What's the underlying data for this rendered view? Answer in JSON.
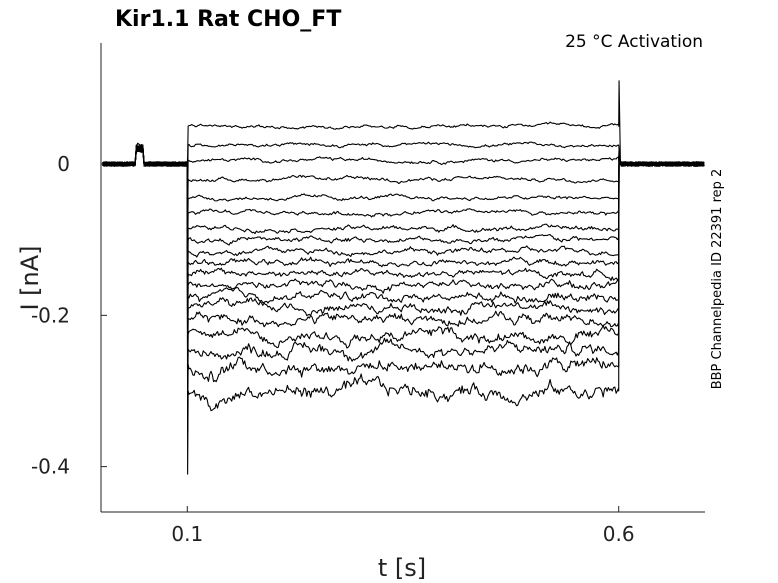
{
  "chart_data": {
    "type": "line",
    "title": "Kir1.1  Rat  CHO_FT",
    "subtitle": "25 °C  Activation",
    "side_label": "BBP Channelpedia ID 22391 rep 2",
    "xlabel": "t [s]",
    "ylabel": "I [nA]",
    "xlim": [
      0.0,
      0.7
    ],
    "ylim": [
      -0.46,
      0.16
    ],
    "xticks": [
      {
        "value": 0.1,
        "label": "0.1"
      },
      {
        "value": 0.6,
        "label": "0.6"
      }
    ],
    "yticks": [
      {
        "value": 0,
        "label": "0"
      },
      {
        "value": -0.2,
        "label": "-0.2"
      },
      {
        "value": -0.4,
        "label": "-0.4"
      }
    ],
    "step_start": 0.1,
    "step_end": 0.6,
    "baseline": 0.0,
    "steady_currents": [
      0.05,
      0.025,
      0.005,
      -0.02,
      -0.045,
      -0.065,
      -0.085,
      -0.1,
      -0.115,
      -0.13,
      -0.145,
      -0.16,
      -0.175,
      -0.19,
      -0.205,
      -0.225,
      -0.245,
      -0.265,
      -0.3
    ],
    "prepulse": {
      "start": 0.04,
      "end": 0.05,
      "value": 0.025
    },
    "peak_transient": -0.41,
    "tail_peak": 0.11
  }
}
